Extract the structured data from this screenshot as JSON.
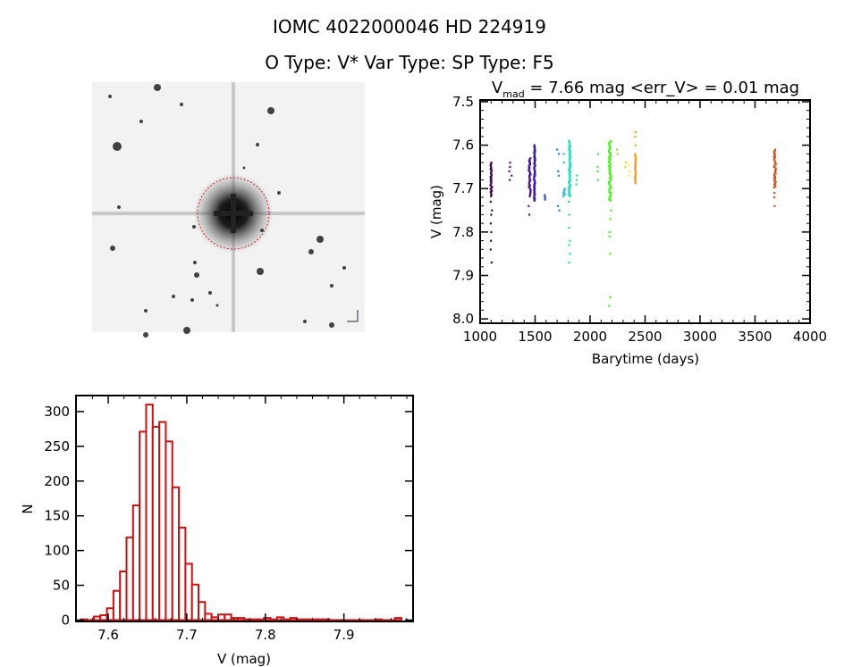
{
  "header": {
    "title": "IOMC 4022000046    HD 224919",
    "subtitle": "O Type: V*  Var Type:    SP Type: F5"
  },
  "chart_data": [
    {
      "type": "image",
      "description_label": "finding chart",
      "marker_color": "#cc2020"
    },
    {
      "type": "scatter",
      "title_main": "V",
      "title_sub": "mad",
      "title_rest": " = 7.66 mag <err_V> = 0.01 mag",
      "xlabel": "Barytime (days)",
      "ylabel": "V (mag)",
      "xlim": [
        1000,
        4000
      ],
      "ylim": [
        7.496,
        8.01
      ],
      "y_inverted": true,
      "xticks": [
        "1000",
        "1500",
        "2000",
        "2500",
        "3000",
        "3500",
        "4000"
      ],
      "yticks": [
        "7.5",
        "7.6",
        "7.7",
        "7.8",
        "7.9",
        "8.0"
      ],
      "groups": [
        {
          "t": 1100,
          "span": 14,
          "color": "#3a0a4a",
          "dense": [
            7.64,
            7.72
          ],
          "extra": [
            7.73,
            7.75,
            7.76,
            7.78,
            7.8,
            7.82,
            7.84,
            7.87
          ]
        },
        {
          "t": 1275,
          "span": 25,
          "color": "#5a1a7a",
          "dense": null,
          "extra": [
            7.64,
            7.65,
            7.66,
            7.67,
            7.68
          ]
        },
        {
          "t": 1450,
          "span": 18,
          "color": "#4a10a0",
          "dense": [
            7.63,
            7.72
          ],
          "extra": [
            7.74,
            7.76
          ]
        },
        {
          "t": 1495,
          "span": 10,
          "color": "#3010c0",
          "dense": [
            7.6,
            7.73
          ],
          "extra": []
        },
        {
          "t": 1590,
          "span": 8,
          "color": "#2040c0",
          "dense": null,
          "extra": [
            7.715,
            7.72,
            7.725
          ]
        },
        {
          "t": 1710,
          "span": 20,
          "color": "#2080d0",
          "dense": null,
          "extra": [
            7.61,
            7.62,
            7.66,
            7.67,
            7.74,
            7.75
          ]
        },
        {
          "t": 1765,
          "span": 18,
          "color": "#30c0e0",
          "dense": [
            7.7,
            7.72
          ],
          "extra": [
            7.62,
            7.64
          ]
        },
        {
          "t": 1812,
          "span": 16,
          "color": "#20e0b0",
          "dense": [
            7.59,
            7.72
          ],
          "extra": [
            7.73,
            7.76,
            7.79,
            7.82,
            7.83,
            7.85,
            7.87
          ]
        },
        {
          "t": 1875,
          "span": 12,
          "color": "#30e090",
          "dense": null,
          "extra": [
            7.67,
            7.68,
            7.69
          ]
        },
        {
          "t": 2070,
          "span": 6,
          "color": "#50e060",
          "dense": null,
          "extra": [
            7.62,
            7.65,
            7.66,
            7.68
          ]
        },
        {
          "t": 2180,
          "span": 22,
          "color": "#50f020",
          "dense": [
            7.59,
            7.73
          ],
          "extra": [
            7.75,
            7.77,
            7.8,
            7.81,
            7.85,
            7.95,
            7.97
          ]
        },
        {
          "t": 2245,
          "span": 12,
          "color": "#80f020",
          "dense": null,
          "extra": [
            7.61,
            7.62
          ]
        },
        {
          "t": 2320,
          "span": 14,
          "color": "#d0e020",
          "dense": null,
          "extra": [
            7.64,
            7.65
          ]
        },
        {
          "t": 2355,
          "span": 20,
          "color": "#f0f040",
          "dense": null,
          "extra": [
            7.645,
            7.66,
            7.67
          ]
        },
        {
          "t": 2412,
          "span": 8,
          "color": "#f0a020",
          "dense": [
            7.62,
            7.69
          ],
          "extra": [
            7.57,
            7.58,
            7.6
          ]
        },
        {
          "t": 3680,
          "span": 16,
          "color": "#e05010",
          "dense": [
            7.61,
            7.7
          ],
          "extra": [
            7.71,
            7.72,
            7.74
          ]
        }
      ]
    },
    {
      "type": "bar",
      "xlabel": "V (mag)",
      "ylabel": "N",
      "xlim": [
        7.559,
        7.988
      ],
      "ylim": [
        -2,
        323
      ],
      "xticks": [
        "7.6",
        "7.7",
        "7.8",
        "7.9"
      ],
      "yticks": [
        "0",
        "50",
        "100",
        "150",
        "200",
        "250",
        "300"
      ],
      "bin_start": 7.565,
      "bin_width": 0.00833,
      "counts": [
        1,
        0,
        5,
        7,
        17,
        42,
        70,
        119,
        165,
        271,
        310,
        278,
        285,
        257,
        191,
        133,
        81,
        51,
        26,
        9,
        4,
        8,
        8,
        3,
        3,
        1,
        1,
        1,
        3,
        1,
        4,
        1,
        3,
        1,
        1,
        1,
        1,
        1,
        0,
        0,
        0,
        0,
        0,
        0,
        0,
        1,
        0,
        0,
        3
      ],
      "color": "#d01010"
    }
  ]
}
